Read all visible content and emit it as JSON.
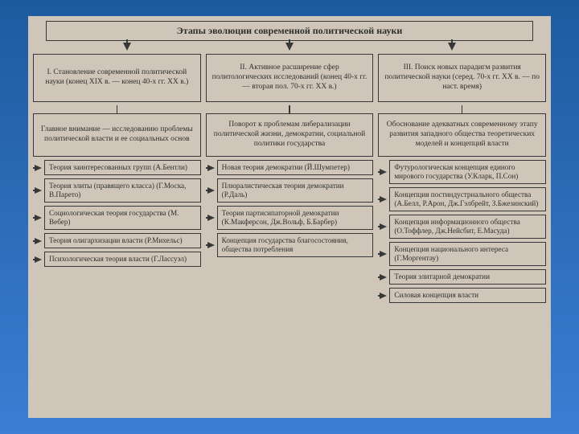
{
  "title": "Этапы эволюции современной политической науки",
  "background_gradient": [
    "#1e5a9e",
    "#3a7fd4"
  ],
  "chart_background": "#d0c8bc",
  "border_color": "#333333",
  "text_color": "#2a2a2a",
  "font_family": "serif",
  "columns": [
    {
      "stage": "I. Становление современной по­литической науки (конец XIX в. — конец 40-х гг. XX в.)",
      "description": "Главное внимание — исследованию проблемы политической власти и ее социальных основ",
      "theories": [
        "Теория заинтересованных групп (А.Бентли)",
        "Теория элиты (правящего класса) (Г.Моска, В.Парето)",
        "Социологическая теория государства (М. Вебер)",
        "Теория олигархизации власти (Р.Михельс)",
        "Психологическая теория власти (Г.Лассуэл)"
      ]
    },
    {
      "stage": "II. Активное расширение сфер политологических исследований (конец 40-х гг.— вторая пол. 70-х гг. XX в.)",
      "description": "Поворот к проблемам либерализации политической жизни, демократии, социальной политики государства",
      "theories": [
        "Новая теория демократии (Й.Шумпетер)",
        "Плюралистическая теория демократии (Р.Даль)",
        "Теория партисипаторной демократии (К.Макферсон, Дж.Вольф, Б.Барбер)",
        "Концепция государства благосостояния, общества потребления"
      ]
    },
    {
      "stage": "III. Поиск новых парадигм развития политической науки (серед. 70-х гг. XX в. — по наст. время)",
      "description": "Обоснование адекватных современному этапу развития западного общества теоретических моделей и концепций власти",
      "theories": [
        "Футурологическая концепция единого мирового государства (У.Кларк, П.Сон)",
        "Концепция постиндустриально­го общества (А.Белл, Р.Арон, Дж.Гэлбрейт, З.Бжезинский)",
        "Концепция информационного общества (О.Тоффлер, Дж.Нейсбит, Е.Масуда)",
        "Концепция национального интереса (Г.Моргентау)",
        "Теория элитарной демократии",
        "Силовая концепция власти"
      ]
    }
  ]
}
